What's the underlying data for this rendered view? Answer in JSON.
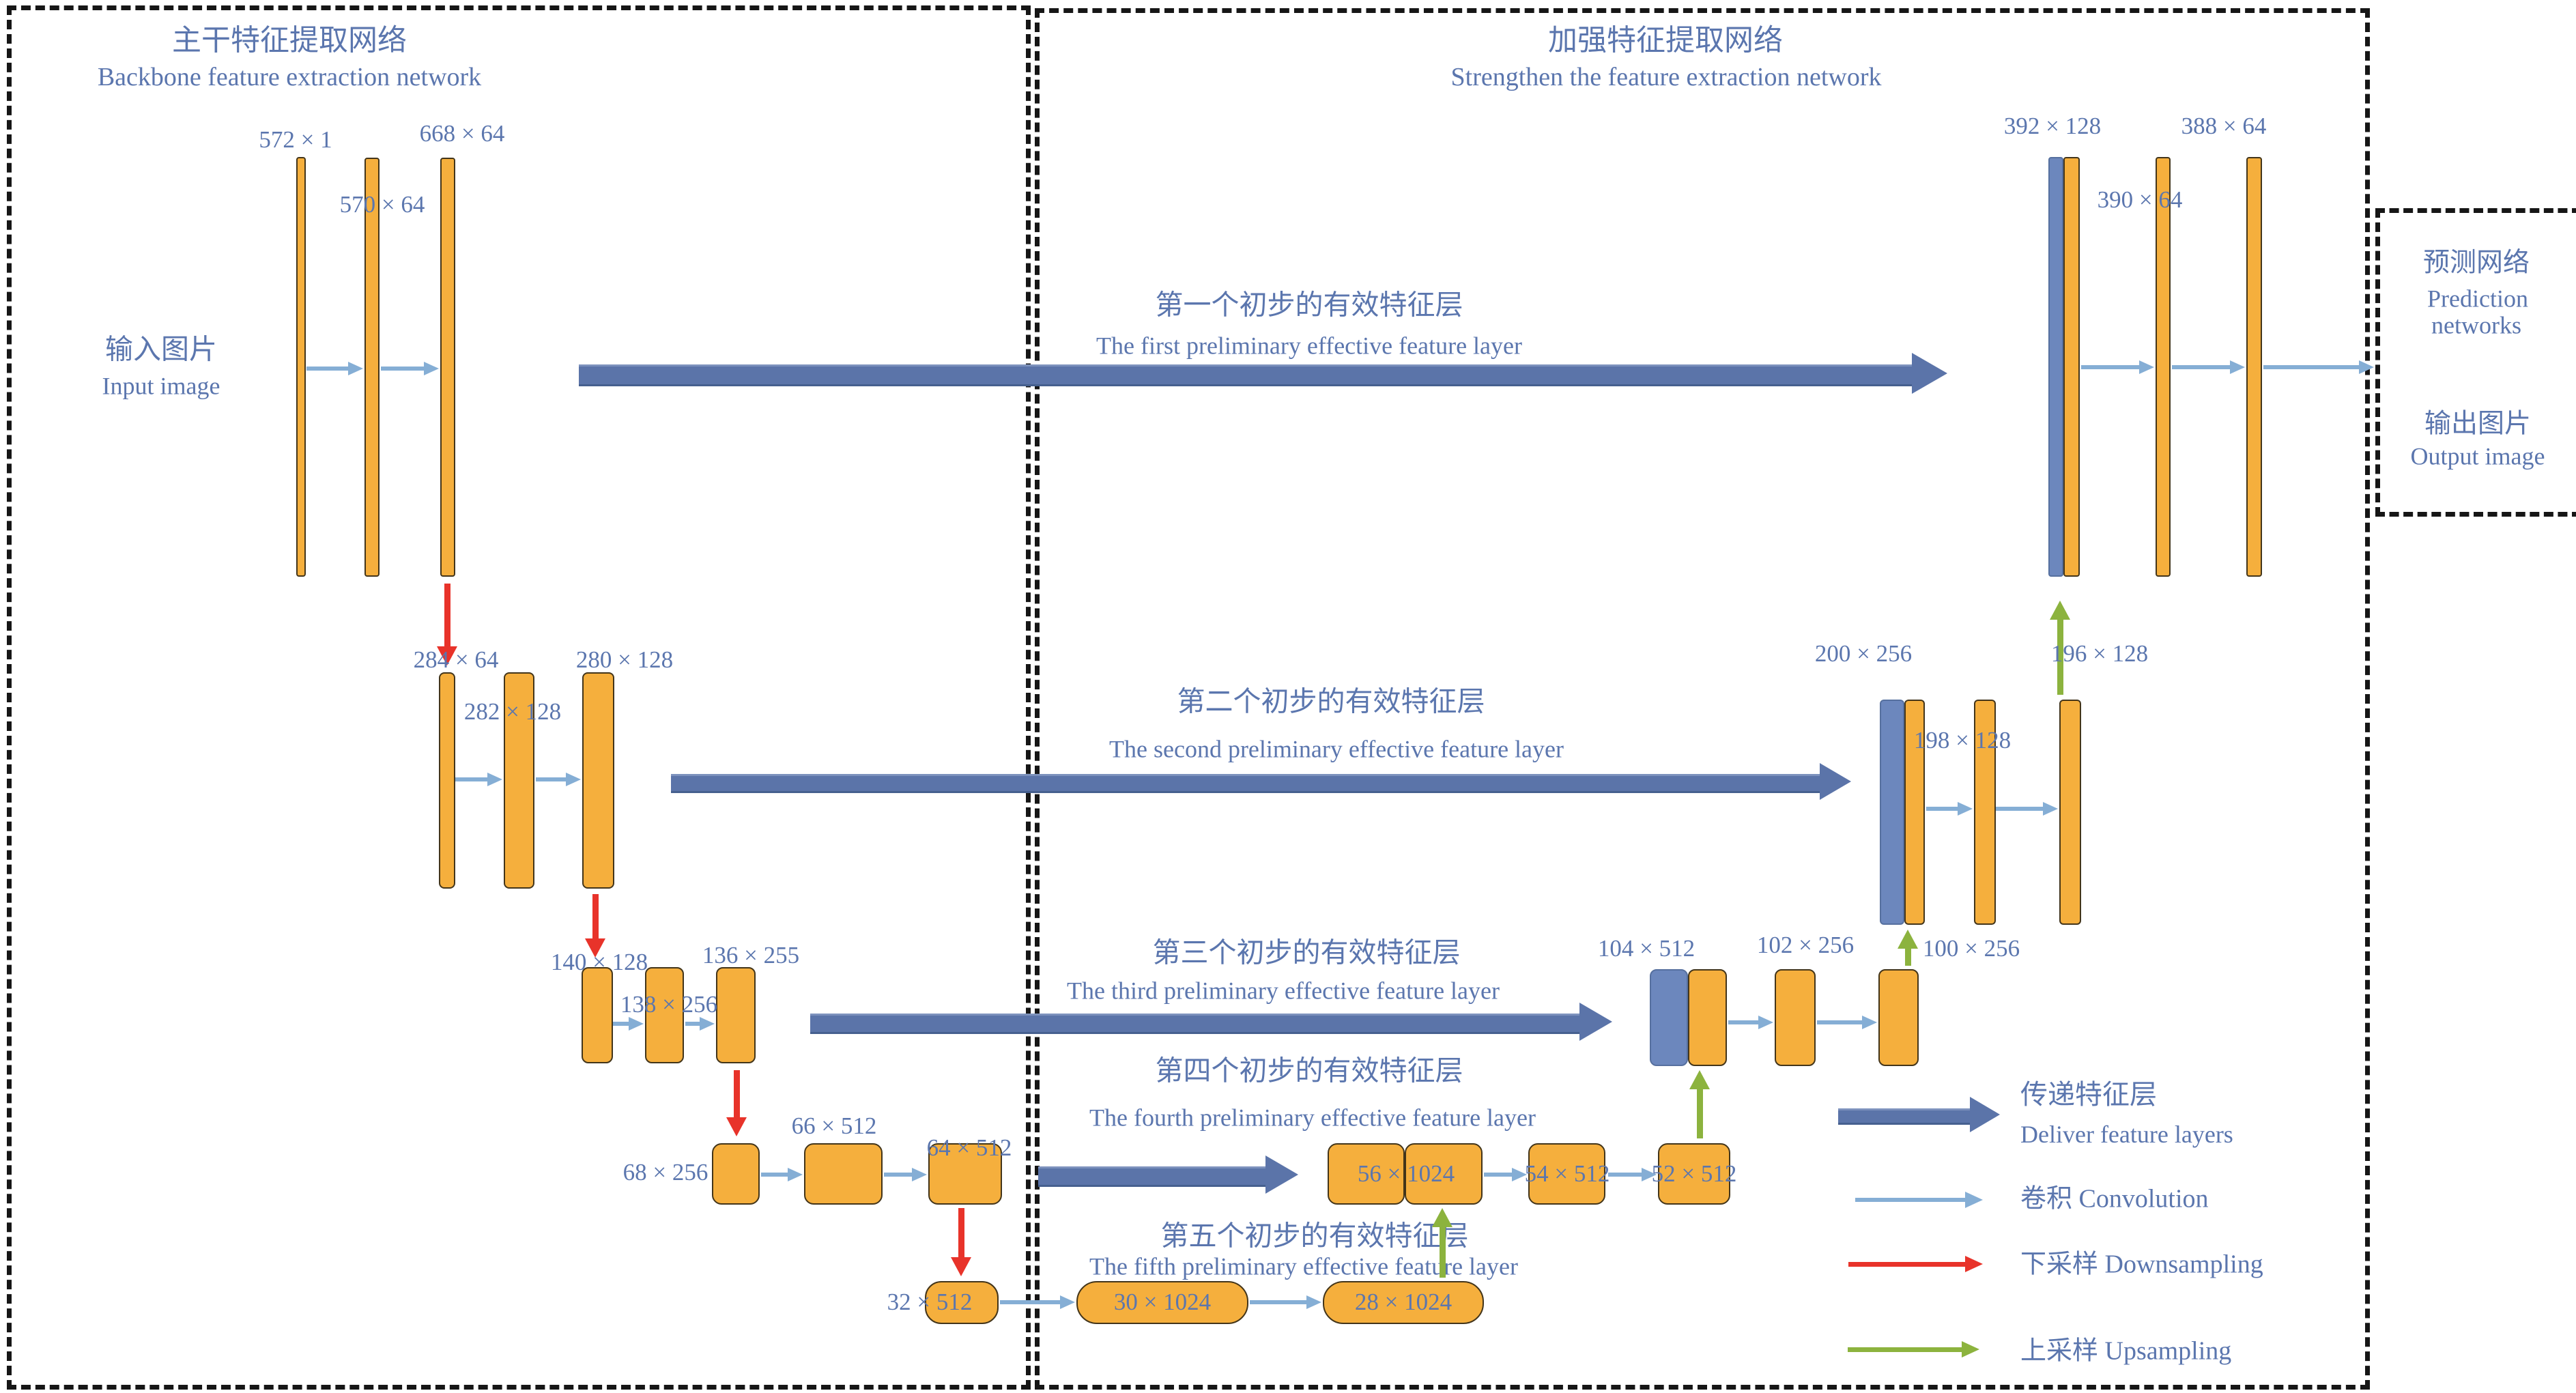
{
  "diagram": {
    "backbone": {
      "title_cn": "主干特征提取网络",
      "title_en": "Backbone feature extraction network",
      "input_cn": "输入图片",
      "input_en": "Input image"
    },
    "strengthen": {
      "title_cn": "加强特征提取网络",
      "title_en": "Strengthen the feature extraction network"
    },
    "prediction": {
      "cn": "预测网络",
      "en1": "Prediction",
      "en2": "networks",
      "out_cn": "输出图片",
      "out_en": "Output image"
    },
    "feature_layers": [
      {
        "cn": "第一个初步的有效特征层",
        "en": "The first preliminary effective feature layer"
      },
      {
        "cn": "第二个初步的有效特征层",
        "en": "The second preliminary effective feature layer"
      },
      {
        "cn": "第三个初步的有效特征层",
        "en": "The third preliminary effective feature layer"
      },
      {
        "cn": "第四个初步的有效特征层",
        "en": "The fourth preliminary effective feature layer"
      },
      {
        "cn": "第五个初步的有效特征层",
        "en": "The fifth preliminary effective feature layer"
      }
    ],
    "dims": {
      "r1l": [
        "572 × 1",
        "570 × 64",
        "668 × 64"
      ],
      "r1r": [
        "392 × 128",
        "390 × 64",
        "388 × 64"
      ],
      "r2l": [
        "284 × 64",
        "282 × 128",
        "280 × 128"
      ],
      "r2r": [
        "200 × 256",
        "198 × 128",
        "196 × 128"
      ],
      "r3l": [
        "140 × 128",
        "138 × 256",
        "136 × 255"
      ],
      "r3r": [
        "104 × 512",
        "102 × 256",
        "100 × 256"
      ],
      "r4l": [
        "68 × 256",
        "66 × 512",
        "64 × 512"
      ],
      "r4r": [
        "56 × 1024",
        "54 × 512",
        "52 × 512"
      ],
      "r5": [
        "32 × 512",
        "30 × 1024",
        "28 × 1024"
      ]
    },
    "legend": [
      {
        "cn": "传递特征层",
        "en": "Deliver feature layers"
      },
      {
        "label": "卷积 Convolution"
      },
      {
        "label": "下采样 Downsampling"
      },
      {
        "label": "上采样 Upsampling"
      }
    ],
    "colors": {
      "yellow": "#F5AF3D",
      "blue_bar": "#6C87BD",
      "deliver_arrow": "#5B74A9",
      "conv_arrow": "#85AED5",
      "downsample_arrow": "#E8332A",
      "upsample_arrow": "#8CB33E",
      "text": "#5B76AE"
    }
  }
}
